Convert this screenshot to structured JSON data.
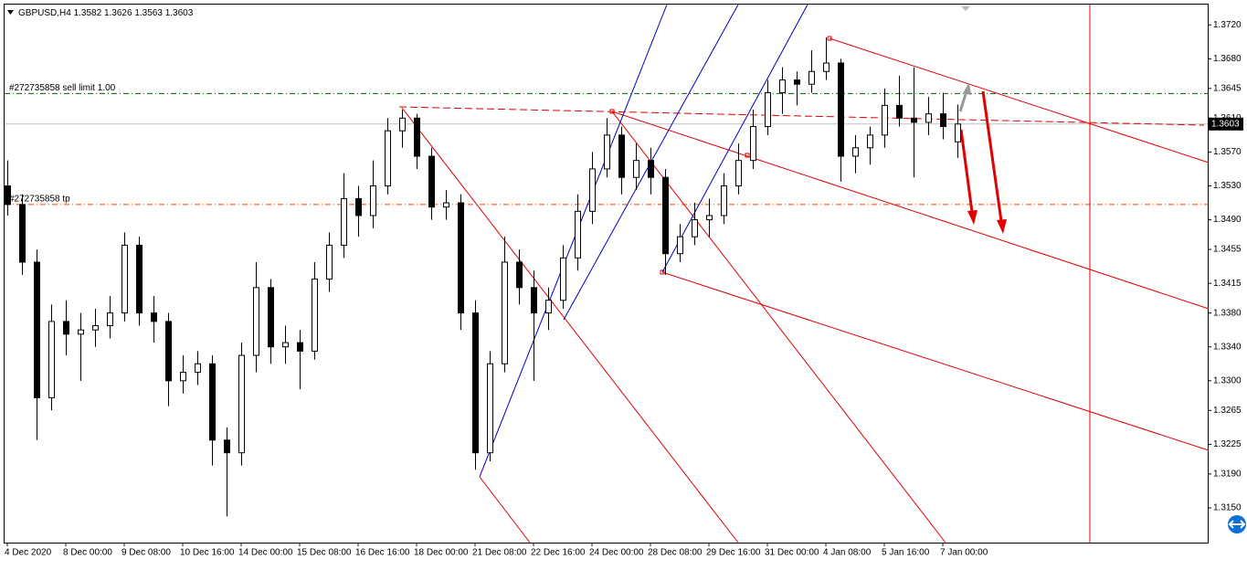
{
  "chart_data": {
    "type": "candlestick",
    "title": "GBPUSD,H4",
    "categories": [
      "4 Dec 2020",
      null,
      null,
      null,
      "8 Dec 00:00",
      null,
      null,
      null,
      "9 Dec 08:00",
      null,
      null,
      null,
      "10 Dec 16:00",
      null,
      null,
      null,
      "14 Dec 00:00",
      null,
      null,
      null,
      "15 Dec 08:00",
      null,
      null,
      null,
      "16 Dec 16:00",
      null,
      null,
      null,
      "18 Dec 00:00",
      null,
      null,
      null,
      "21 Dec 08:00",
      null,
      null,
      null,
      "22 Dec 16:00",
      null,
      null,
      null,
      "24 Dec 00:00",
      null,
      null,
      null,
      "28 Dec 08:00",
      null,
      null,
      null,
      "29 Dec 16:00",
      null,
      null,
      null,
      "31 Dec 00:00",
      null,
      null,
      null,
      "4 Jan 08:00",
      null,
      null,
      null,
      "5 Jan 16:00",
      null,
      null,
      null,
      "7 Jan 00:00",
      null
    ],
    "open": [
      1.353,
      1.3508,
      1.344,
      1.328,
      1.337,
      1.3355,
      1.336,
      1.3365,
      1.338,
      1.346,
      1.338,
      1.337,
      1.33,
      1.331,
      1.332,
      1.323,
      1.3215,
      1.333,
      1.341,
      1.334,
      1.3345,
      1.3335,
      1.342,
      1.346,
      1.3515,
      1.3495,
      1.353,
      1.3595,
      1.361,
      1.3565,
      1.3505,
      1.351,
      1.338,
      1.3215,
      1.332,
      1.344,
      1.341,
      1.338,
      1.3395,
      1.3445,
      1.35,
      1.355,
      1.359,
      1.354,
      1.356,
      1.354,
      1.345,
      1.347,
      1.349,
      1.3495,
      1.353,
      1.356,
      1.36,
      1.364,
      1.3655,
      1.365,
      1.3665,
      1.3675,
      1.3565,
      1.3575,
      1.359,
      1.3625,
      1.361,
      1.3605,
      1.3615,
      1.3582
    ],
    "high": [
      1.356,
      1.352,
      1.3455,
      1.339,
      1.3395,
      1.338,
      1.3385,
      1.34,
      1.3475,
      1.347,
      1.34,
      1.338,
      1.333,
      1.3335,
      1.333,
      1.3245,
      1.3345,
      1.344,
      1.342,
      1.3365,
      1.336,
      1.344,
      1.3475,
      1.3545,
      1.353,
      1.356,
      1.361,
      1.362,
      1.3615,
      1.3575,
      1.3525,
      1.352,
      1.3395,
      1.3335,
      1.347,
      1.3455,
      1.343,
      1.341,
      1.346,
      1.352,
      1.357,
      1.361,
      1.36,
      1.358,
      1.3575,
      1.355,
      1.3485,
      1.351,
      1.3515,
      1.3545,
      1.358,
      1.362,
      1.3655,
      1.367,
      1.3665,
      1.369,
      1.3705,
      1.368,
      1.359,
      1.36,
      1.3645,
      1.366,
      1.367,
      1.3635,
      1.364,
      1.3626
    ],
    "low": [
      1.3495,
      1.3425,
      1.323,
      1.3265,
      1.333,
      1.33,
      1.334,
      1.335,
      1.337,
      1.3365,
      1.3345,
      1.327,
      1.3285,
      1.3295,
      1.32,
      1.314,
      1.32,
      1.331,
      1.332,
      1.332,
      1.329,
      1.3325,
      1.3405,
      1.3445,
      1.347,
      1.348,
      1.352,
      1.3575,
      1.355,
      1.349,
      1.349,
      1.336,
      1.3195,
      1.3205,
      1.331,
      1.339,
      1.33,
      1.336,
      1.3385,
      1.343,
      1.3485,
      1.354,
      1.352,
      1.3525,
      1.352,
      1.3425,
      1.344,
      1.346,
      1.347,
      1.3485,
      1.352,
      1.355,
      1.359,
      1.3615,
      1.3625,
      1.364,
      1.3655,
      1.3535,
      1.3545,
      1.3555,
      1.3575,
      1.36,
      1.354,
      1.359,
      1.3585,
      1.3563
    ],
    "close": [
      1.3508,
      1.344,
      1.328,
      1.337,
      1.3355,
      1.336,
      1.3365,
      1.338,
      1.346,
      1.338,
      1.337,
      1.33,
      1.331,
      1.332,
      1.323,
      1.3215,
      1.333,
      1.341,
      1.334,
      1.3345,
      1.3335,
      1.342,
      1.346,
      1.3515,
      1.3495,
      1.353,
      1.3595,
      1.361,
      1.3565,
      1.3505,
      1.351,
      1.338,
      1.3215,
      1.332,
      1.344,
      1.341,
      1.338,
      1.3395,
      1.3445,
      1.35,
      1.355,
      1.359,
      1.354,
      1.356,
      1.354,
      1.345,
      1.347,
      1.349,
      1.3495,
      1.353,
      1.356,
      1.36,
      1.364,
      1.3655,
      1.365,
      1.3665,
      1.3675,
      1.3565,
      1.3575,
      1.359,
      1.3625,
      1.361,
      1.3605,
      1.3615,
      1.36,
      1.3603
    ],
    "up_color": "#ffffff",
    "down_color": "#000000",
    "ylim": [
      1.3109,
      1.3744
    ],
    "yticks": [
      {
        "value": 1.372,
        "label": "1.3720"
      },
      {
        "value": 1.368,
        "label": "1.3680"
      },
      1.3645,
      {
        "value": 1.361,
        "label": "1.3610"
      },
      {
        "value": 1.357,
        "label": "1.3570"
      },
      {
        "value": 1.353,
        "label": "1.3530"
      },
      {
        "value": 1.349,
        "label": "1.3490"
      },
      1.3455,
      1.3415,
      {
        "value": 1.338,
        "label": "1.3380"
      },
      {
        "value": 1.334,
        "label": "1.3340"
      },
      {
        "value": 1.33,
        "label": "1.3300"
      },
      1.3265,
      1.3225,
      {
        "value": 1.319,
        "label": "1.3190"
      },
      {
        "value": 1.315,
        "label": "1.3150"
      }
    ],
    "levels": [
      {
        "label": "#272735858 sell limit 1.00",
        "value": 1.3639,
        "color": "#006400"
      },
      {
        "label": "#272735858 tp",
        "value": 1.3508,
        "color": "#ff4500"
      }
    ]
  }
}
